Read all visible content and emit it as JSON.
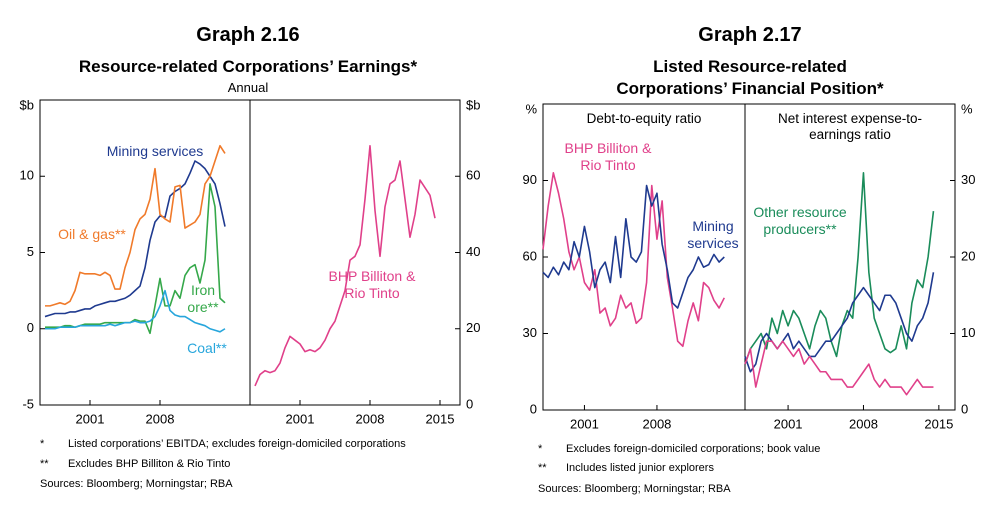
{
  "graphs": [
    {
      "label": "Graph 2.16",
      "title": [
        "Resource-related Corporations’ Earnings*"
      ],
      "subtitle": "Annual",
      "notes": [
        {
          "mark": "*",
          "text": "Listed corporations’ EBITDA; excludes foreign-domiciled corporations"
        },
        {
          "mark": "**",
          "text": "Excludes BHP Billiton & Rio Tinto"
        }
      ],
      "sources": "Sources:  Bloomberg; Morningstar; RBA"
    },
    {
      "label": "Graph 2.17",
      "title": [
        "Listed Resource-related",
        "Corporations’ Financial Position*"
      ],
      "notes": [
        {
          "mark": "*",
          "text": "Excludes foreign-domiciled corporations; book value"
        },
        {
          "mark": "**",
          "text": "Includes listed junior explorers"
        }
      ],
      "sources": "Sources:  Bloomberg; Morningstar; RBA"
    }
  ],
  "chart_data": [
    {
      "type": "line",
      "ylabel": "$b",
      "ylim": [
        -5,
        15
      ],
      "yticks": [
        -5,
        0,
        5,
        10
      ],
      "xlim": [
        1996,
        2017
      ],
      "xticks": [
        2001,
        2008
      ],
      "x": [
        1996.5,
        1997,
        1997.5,
        1998,
        1998.5,
        1999,
        1999.5,
        2000,
        2000.5,
        2001,
        2001.5,
        2002,
        2002.5,
        2003,
        2003.5,
        2004,
        2004.5,
        2005,
        2005.5,
        2006,
        2006.5,
        2007,
        2007.5,
        2008,
        2008.5,
        2009,
        2009.5,
        2010,
        2010.5,
        2011,
        2011.5,
        2012,
        2012.5,
        2013,
        2013.5,
        2014,
        2014.5
      ],
      "series": [
        {
          "name": "Mining services",
          "color": "#1f3a8f",
          "values": [
            0.8,
            0.9,
            1.0,
            1.0,
            1.0,
            1.1,
            1.1,
            1.2,
            1.3,
            1.3,
            1.5,
            1.6,
            1.7,
            1.8,
            1.8,
            1.9,
            2.0,
            2.2,
            2.5,
            2.8,
            4.0,
            5.8,
            7.0,
            7.4,
            7.3,
            8.7,
            9.0,
            9.2,
            9.5,
            10.2,
            11.0,
            10.8,
            10.5,
            10.0,
            9.5,
            8.2,
            6.7
          ]
        },
        {
          "name": "Oil & gas**",
          "color": "#f07a2a",
          "values": [
            1.5,
            1.5,
            1.6,
            1.7,
            1.6,
            1.8,
            2.5,
            3.7,
            3.6,
            3.6,
            3.6,
            3.5,
            3.7,
            3.5,
            2.6,
            2.6,
            4.0,
            5.0,
            6.5,
            7.2,
            7.5,
            8.5,
            10.5,
            7.5,
            7.2,
            7.0,
            9.3,
            9.4,
            6.6,
            6.8,
            7.0,
            7.5,
            9.5,
            10.0,
            11.0,
            12.0,
            11.5
          ]
        },
        {
          "name": "Iron ore**",
          "color": "#35a84a",
          "values": [
            0.1,
            0.1,
            0.1,
            0.1,
            0.2,
            0.2,
            0.1,
            0.2,
            0.3,
            0.3,
            0.3,
            0.3,
            0.4,
            0.4,
            0.4,
            0.4,
            0.4,
            0.4,
            0.6,
            0.5,
            0.5,
            -0.3,
            1.5,
            3.3,
            1.5,
            1.5,
            2.5,
            2.0,
            3.5,
            4.0,
            4.2,
            3.0,
            4.5,
            9.5,
            8.0,
            2.0,
            1.7
          ]
        },
        {
          "name": "Coal**",
          "color": "#27a6dc",
          "values": [
            0.0,
            0.0,
            0.0,
            0.1,
            0.1,
            0.1,
            0.1,
            0.2,
            0.2,
            0.2,
            0.2,
            0.2,
            0.2,
            0.3,
            0.2,
            0.3,
            0.4,
            0.4,
            0.5,
            0.4,
            0.4,
            0.5,
            0.8,
            1.5,
            2.5,
            1.2,
            0.9,
            0.8,
            0.8,
            0.6,
            0.4,
            0.3,
            0.2,
            0.0,
            -0.1,
            -0.2,
            0.0
          ]
        }
      ]
    },
    {
      "type": "line",
      "ylabel": "$b",
      "ylim": [
        0,
        80
      ],
      "yticks": [
        0,
        20,
        40,
        60
      ],
      "xlim": [
        1996,
        2017
      ],
      "xticks": [
        2001,
        2008,
        2015
      ],
      "x": [
        1996.5,
        1997,
        1997.5,
        1998,
        1998.5,
        1999,
        1999.5,
        2000,
        2000.5,
        2001,
        2001.5,
        2002,
        2002.5,
        2003,
        2003.5,
        2004,
        2004.5,
        2005,
        2005.5,
        2006,
        2006.5,
        2007,
        2007.5,
        2008,
        2008.5,
        2009,
        2009.5,
        2010,
        2010.5,
        2011,
        2011.5,
        2012,
        2012.5,
        2013,
        2013.5,
        2014,
        2014.5
      ],
      "series": [
        {
          "name": "BHP Billiton & Rio Tinto",
          "color": "#e0408a",
          "values": [
            5,
            8,
            9,
            8.5,
            9,
            11,
            15,
            18,
            17,
            16,
            14,
            14.5,
            14,
            15,
            17,
            20,
            22,
            26,
            30,
            38,
            39,
            42,
            54,
            68,
            51,
            39,
            52,
            58,
            59,
            64,
            54,
            44,
            50,
            59,
            57,
            55,
            49
          ]
        }
      ]
    },
    {
      "type": "line",
      "title": "Debt-to-equity ratio",
      "ylabel": "%",
      "ylim": [
        0,
        120
      ],
      "yticks": [
        0,
        30,
        60,
        90
      ],
      "xlim": [
        1997,
        2016.5
      ],
      "xticks": [
        2001,
        2008
      ],
      "x": [
        1997,
        1997.5,
        1998,
        1998.5,
        1999,
        1999.5,
        2000,
        2000.5,
        2001,
        2001.5,
        2002,
        2002.5,
        2003,
        2003.5,
        2004,
        2004.5,
        2005,
        2005.5,
        2006,
        2006.5,
        2007,
        2007.5,
        2008,
        2008.5,
        2009,
        2009.5,
        2010,
        2010.5,
        2011,
        2011.5,
        2012,
        2012.5,
        2013,
        2013.5,
        2014,
        2014.5
      ],
      "series": [
        {
          "name": "BHP Billiton & Rio Tinto",
          "color": "#e0408a",
          "values": [
            63,
            80,
            93,
            85,
            75,
            62,
            55,
            60,
            50,
            47,
            55,
            38,
            40,
            33,
            36,
            45,
            40,
            42,
            34,
            36,
            50,
            88,
            67,
            82,
            52,
            40,
            27,
            25,
            35,
            42,
            35,
            50,
            48,
            43,
            40,
            44
          ]
        },
        {
          "name": "Mining services",
          "color": "#1f3a8f",
          "values": [
            54,
            52,
            56,
            53,
            58,
            55,
            66,
            60,
            72,
            62,
            48,
            55,
            58,
            50,
            68,
            52,
            75,
            60,
            58,
            62,
            88,
            80,
            85,
            65,
            55,
            42,
            40,
            46,
            52,
            55,
            60,
            56,
            57,
            61,
            58,
            60
          ]
        }
      ]
    },
    {
      "type": "line",
      "title": "Net interest expense-to-earnings ratio",
      "ylabel": "%",
      "ylim": [
        0,
        40
      ],
      "yticks": [
        0,
        10,
        20,
        30
      ],
      "xlim": [
        1997,
        2016.5
      ],
      "xticks": [
        2001,
        2008,
        2015
      ],
      "x": [
        1997,
        1997.5,
        1998,
        1998.5,
        1999,
        1999.5,
        2000,
        2000.5,
        2001,
        2001.5,
        2002,
        2002.5,
        2003,
        2003.5,
        2004,
        2004.5,
        2005,
        2005.5,
        2006,
        2006.5,
        2007,
        2007.5,
        2008,
        2008.5,
        2009,
        2009.5,
        2010,
        2010.5,
        2011,
        2011.5,
        2012,
        2012.5,
        2013,
        2013.5,
        2014,
        2014.5
      ],
      "series": [
        {
          "name": "Other resource producers**",
          "color": "#1a8c5a",
          "values": [
            6,
            8,
            9,
            10,
            8,
            12,
            10,
            13,
            11,
            13,
            12,
            10,
            8,
            11,
            13,
            12,
            9,
            7,
            11,
            13,
            12,
            20,
            31,
            18,
            12,
            10,
            8,
            7.5,
            8,
            11,
            8,
            14,
            17,
            16,
            20,
            26
          ]
        },
        {
          "color": "#1f3a8f",
          "values": [
            7,
            5,
            6,
            9,
            10,
            9,
            8,
            9,
            10,
            8,
            9,
            8,
            7,
            7,
            8,
            9,
            9,
            10,
            11,
            12,
            14,
            15,
            16,
            15,
            14,
            13,
            15,
            15,
            14,
            12,
            10,
            9,
            11,
            12,
            14,
            18
          ]
        },
        {
          "color": "#e0408a",
          "values": [
            6,
            8,
            3,
            6,
            9,
            9,
            8,
            9,
            8,
            7,
            8,
            6,
            7,
            6,
            5,
            5,
            4,
            4,
            4,
            3,
            3,
            4,
            5,
            6,
            4,
            3,
            4,
            3,
            3,
            3,
            2,
            3,
            4,
            3,
            3,
            3
          ]
        }
      ]
    }
  ]
}
